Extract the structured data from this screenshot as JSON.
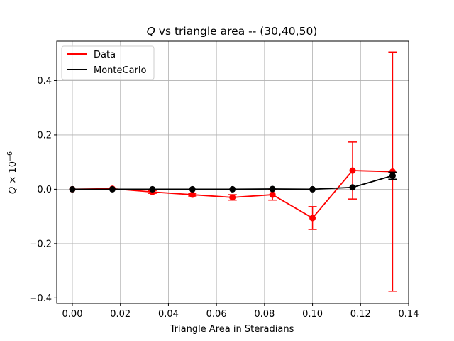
{
  "chart_data": {
    "type": "line",
    "title": {
      "italic_symbol": "Q",
      "rest": " vs triangle area -- (30,40,50)"
    },
    "xlabel": "Triangle Area in Steradians",
    "ylabel": {
      "symbol": "Q",
      "times": " × 10",
      "exponent": "−6"
    },
    "xlim": [
      -0.0065,
      0.14
    ],
    "ylim": [
      -0.42,
      0.545
    ],
    "xticks": [
      0.0,
      0.02,
      0.04,
      0.06,
      0.08,
      0.1,
      0.12,
      0.14
    ],
    "xtick_labels": [
      "0.00",
      "0.02",
      "0.04",
      "0.06",
      "0.08",
      "0.10",
      "0.12",
      "0.14"
    ],
    "yticks": [
      -0.4,
      -0.2,
      0.0,
      0.2,
      0.4
    ],
    "ytick_labels": [
      "−0.4",
      "−0.2",
      "0.0",
      "0.2",
      "0.4"
    ],
    "grid": true,
    "legend_position": "top-left",
    "series": [
      {
        "name": "Data",
        "color": "#ff0000",
        "x": [
          0.0,
          0.01667,
          0.03333,
          0.05,
          0.06667,
          0.08333,
          0.1,
          0.11667,
          0.13333
        ],
        "y": [
          0.0,
          0.002,
          -0.01,
          -0.02,
          -0.03,
          -0.02,
          -0.106,
          0.069,
          0.065
        ],
        "yerr": [
          0.0,
          0.0,
          0.005,
          0.005,
          0.01,
          0.02,
          0.042,
          0.105,
          0.44
        ]
      },
      {
        "name": "MonteCarlo",
        "color": "#000000",
        "x": [
          0.0,
          0.01667,
          0.03333,
          0.05,
          0.06667,
          0.08333,
          0.1,
          0.11667,
          0.13333
        ],
        "y": [
          0.0,
          0.0,
          0.0,
          0.0,
          0.0,
          0.001,
          0.0,
          0.007,
          0.05
        ],
        "yerr": [
          0.0,
          0.0,
          0.0,
          0.0,
          0.0,
          0.0,
          0.0,
          0.0,
          0.013
        ]
      }
    ]
  }
}
